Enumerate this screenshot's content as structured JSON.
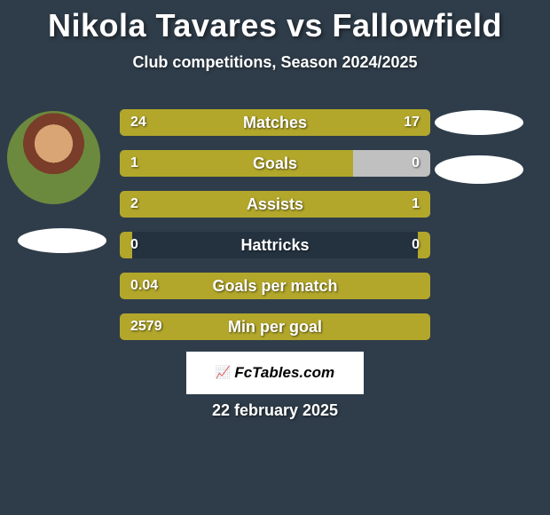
{
  "page": {
    "title": "Nikola Tavares vs Fallowfield",
    "subtitle": "Club competitions, Season 2024/2025",
    "date": "22 february 2025",
    "background_color": "#2f3d4a",
    "text_color": "#ffffff"
  },
  "colors": {
    "bar_fill": "#b2a72b",
    "bar_empty": "#c0c0c0",
    "bar_dark": "#243240"
  },
  "stats": [
    {
      "label": "Matches",
      "left_value": "24",
      "right_value": "17",
      "left_pct": 50,
      "right_pct": 50,
      "left_color": "#b2a72b",
      "right_color": "#b2a72b",
      "bg_color": "#c0c0c0"
    },
    {
      "label": "Goals",
      "left_value": "1",
      "right_value": "0",
      "left_pct": 75,
      "right_pct": 0,
      "left_color": "#b2a72b",
      "right_color": "#c0c0c0",
      "bg_color": "#c0c0c0"
    },
    {
      "label": "Assists",
      "left_value": "2",
      "right_value": "1",
      "left_pct": 60,
      "right_pct": 40,
      "left_color": "#b2a72b",
      "right_color": "#b2a72b",
      "bg_color": "#c0c0c0"
    },
    {
      "label": "Hattricks",
      "left_value": "0",
      "right_value": "0",
      "left_pct": 4,
      "right_pct": 4,
      "left_color": "#b2a72b",
      "right_color": "#b2a72b",
      "bg_color": "#243240"
    },
    {
      "label": "Goals per match",
      "left_value": "0.04",
      "right_value": "",
      "left_pct": 100,
      "right_pct": 0,
      "left_color": "#b2a72b",
      "right_color": "#b2a72b",
      "bg_color": "#b2a72b"
    },
    {
      "label": "Min per goal",
      "left_value": "2579",
      "right_value": "",
      "left_pct": 100,
      "right_pct": 0,
      "left_color": "#b2a72b",
      "right_color": "#b2a72b",
      "bg_color": "#b2a72b"
    }
  ],
  "footer": {
    "brand": "FcTables.com",
    "icon": "📈"
  }
}
